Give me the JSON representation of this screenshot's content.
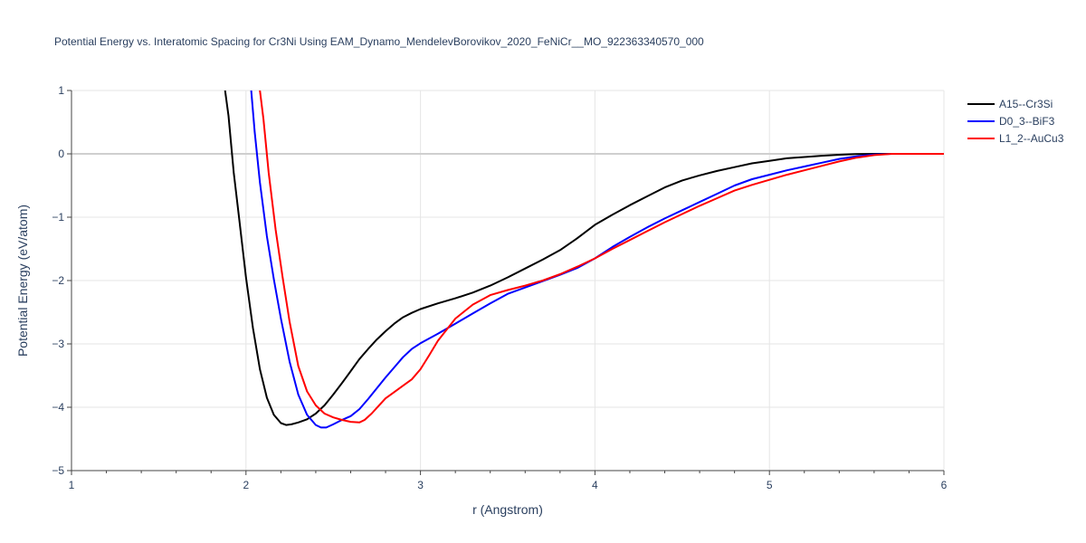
{
  "chart_data": {
    "type": "line",
    "title": "Potential Energy vs. Interatomic Spacing for Cr3Ni Using EAM_Dynamo_MendelevBorovikov_2020_FeNiCr__MO_922363340570_000",
    "xlabel": "r (Angstrom)",
    "ylabel": "Potential Energy (eV/atom)",
    "xlim": [
      1,
      6
    ],
    "ylim": [
      -5,
      1
    ],
    "xticks": [
      1,
      2,
      3,
      4,
      5,
      6
    ],
    "xtick_labels": [
      "1",
      "2",
      "3",
      "4",
      "5",
      "6"
    ],
    "yticks": [
      -5,
      -4,
      -3,
      -2,
      -1,
      0,
      1
    ],
    "ytick_labels": [
      "−5",
      "−4",
      "−3",
      "−2",
      "−1",
      "0",
      "1"
    ],
    "grid": true,
    "legend_position": "top-right",
    "series": [
      {
        "name": "A15--Cr3Si",
        "color": "#000000",
        "x": [
          1.88,
          1.9,
          1.93,
          1.96,
          2.0,
          2.04,
          2.08,
          2.12,
          2.16,
          2.2,
          2.23,
          2.26,
          2.3,
          2.35,
          2.4,
          2.45,
          2.5,
          2.55,
          2.6,
          2.65,
          2.7,
          2.75,
          2.8,
          2.85,
          2.9,
          2.95,
          3.0,
          3.1,
          3.2,
          3.3,
          3.4,
          3.5,
          3.6,
          3.7,
          3.8,
          3.9,
          4.0,
          4.1,
          4.2,
          4.3,
          4.4,
          4.5,
          4.6,
          4.7,
          4.8,
          4.9,
          5.0,
          5.1,
          5.2,
          5.3,
          5.4,
          5.5,
          5.6,
          5.7,
          5.8,
          5.9,
          6.0
        ],
        "y": [
          1.0,
          0.6,
          -0.3,
          -1.0,
          -1.95,
          -2.75,
          -3.4,
          -3.85,
          -4.12,
          -4.25,
          -4.28,
          -4.27,
          -4.24,
          -4.19,
          -4.1,
          -3.97,
          -3.8,
          -3.62,
          -3.43,
          -3.24,
          -3.08,
          -2.93,
          -2.8,
          -2.68,
          -2.58,
          -2.51,
          -2.45,
          -2.36,
          -2.28,
          -2.19,
          -2.08,
          -1.95,
          -1.81,
          -1.67,
          -1.52,
          -1.33,
          -1.12,
          -0.96,
          -0.81,
          -0.67,
          -0.53,
          -0.42,
          -0.34,
          -0.27,
          -0.21,
          -0.15,
          -0.11,
          -0.07,
          -0.05,
          -0.03,
          -0.015,
          -0.005,
          0.0,
          0.0,
          0.0,
          0.0,
          0.0
        ]
      },
      {
        "name": "D0_3--BiF3",
        "color": "#0000ff",
        "x": [
          2.03,
          2.05,
          2.08,
          2.12,
          2.16,
          2.2,
          2.25,
          2.3,
          2.35,
          2.4,
          2.43,
          2.46,
          2.5,
          2.55,
          2.6,
          2.65,
          2.7,
          2.75,
          2.8,
          2.85,
          2.9,
          2.95,
          3.0,
          3.1,
          3.2,
          3.3,
          3.4,
          3.5,
          3.6,
          3.7,
          3.8,
          3.9,
          4.0,
          4.1,
          4.2,
          4.3,
          4.4,
          4.5,
          4.6,
          4.7,
          4.8,
          4.9,
          5.0,
          5.1,
          5.2,
          5.3,
          5.4,
          5.5,
          5.6,
          5.7,
          5.8,
          5.9,
          6.0
        ],
        "y": [
          1.0,
          0.35,
          -0.45,
          -1.3,
          -1.98,
          -2.6,
          -3.28,
          -3.8,
          -4.12,
          -4.28,
          -4.32,
          -4.32,
          -4.27,
          -4.2,
          -4.14,
          -4.03,
          -3.87,
          -3.7,
          -3.53,
          -3.37,
          -3.21,
          -3.08,
          -2.99,
          -2.84,
          -2.68,
          -2.52,
          -2.36,
          -2.21,
          -2.11,
          -2.01,
          -1.91,
          -1.8,
          -1.65,
          -1.47,
          -1.31,
          -1.16,
          -1.02,
          -0.89,
          -0.76,
          -0.63,
          -0.5,
          -0.4,
          -0.33,
          -0.26,
          -0.2,
          -0.14,
          -0.08,
          -0.04,
          -0.01,
          0.0,
          0.0,
          0.0,
          0.0
        ]
      },
      {
        "name": "L1_2--AuCu3",
        "color": "#ff0000",
        "x": [
          2.08,
          2.1,
          2.13,
          2.17,
          2.21,
          2.25,
          2.3,
          2.35,
          2.4,
          2.45,
          2.5,
          2.55,
          2.6,
          2.65,
          2.68,
          2.72,
          2.76,
          2.8,
          2.85,
          2.9,
          2.95,
          3.0,
          3.05,
          3.1,
          3.2,
          3.3,
          3.4,
          3.5,
          3.6,
          3.7,
          3.8,
          3.9,
          4.0,
          4.1,
          4.2,
          4.3,
          4.4,
          4.5,
          4.6,
          4.7,
          4.8,
          4.9,
          5.0,
          5.1,
          5.2,
          5.3,
          5.4,
          5.5,
          5.6,
          5.7,
          5.8,
          5.9,
          6.0
        ],
        "y": [
          1.0,
          0.55,
          -0.3,
          -1.2,
          -1.95,
          -2.65,
          -3.35,
          -3.75,
          -3.97,
          -4.1,
          -4.16,
          -4.2,
          -4.23,
          -4.24,
          -4.2,
          -4.1,
          -3.98,
          -3.86,
          -3.76,
          -3.66,
          -3.56,
          -3.4,
          -3.18,
          -2.95,
          -2.6,
          -2.38,
          -2.23,
          -2.15,
          -2.08,
          -2.0,
          -1.9,
          -1.78,
          -1.65,
          -1.5,
          -1.36,
          -1.22,
          -1.08,
          -0.95,
          -0.82,
          -0.7,
          -0.58,
          -0.49,
          -0.41,
          -0.33,
          -0.26,
          -0.19,
          -0.12,
          -0.06,
          -0.02,
          0.0,
          0.0,
          0.0,
          0.0
        ]
      }
    ]
  }
}
